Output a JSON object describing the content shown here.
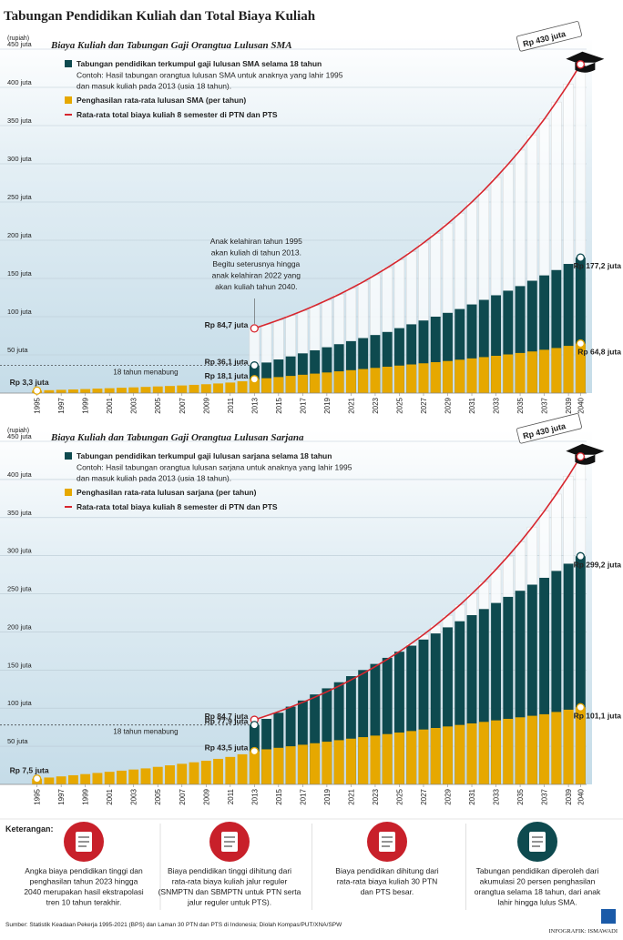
{
  "title": "Tabungan Pendidikan Kuliah dan Total Biaya Kuliah",
  "chart_data": [
    {
      "type": "bar",
      "title": "Biaya Kuliah dan Tabungan Gaji Orangtua Lulusan SMA",
      "y_unit": "(rupiah)",
      "x": [
        1995,
        1996,
        1997,
        1998,
        1999,
        2000,
        2001,
        2002,
        2003,
        2004,
        2005,
        2006,
        2007,
        2008,
        2009,
        2010,
        2011,
        2012,
        2013,
        2014,
        2015,
        2016,
        2017,
        2018,
        2019,
        2020,
        2021,
        2022,
        2023,
        2024,
        2025,
        2026,
        2027,
        2028,
        2029,
        2030,
        2031,
        2032,
        2033,
        2034,
        2035,
        2036,
        2037,
        2038,
        2039,
        2040
      ],
      "xlim": [
        1994.5,
        2040.5
      ],
      "xticks": [
        1995,
        1997,
        1999,
        2001,
        2003,
        2005,
        2007,
        2009,
        2011,
        2013,
        2015,
        2017,
        2019,
        2021,
        2023,
        2025,
        2027,
        2029,
        2031,
        2033,
        2035,
        2037,
        2039,
        2040
      ],
      "highlight_x": 2013,
      "ylim": [
        0,
        450
      ],
      "yticks": [
        {
          "value": 50,
          "label": "50 juta"
        },
        {
          "value": 100,
          "label": "100 juta"
        },
        {
          "value": 150,
          "label": "150 juta"
        },
        {
          "value": 200,
          "label": "200 juta"
        },
        {
          "value": 250,
          "label": "250 juta"
        },
        {
          "value": 300,
          "label": "300 juta"
        },
        {
          "value": 350,
          "label": "350 juta"
        },
        {
          "value": 400,
          "label": "400 juta"
        },
        {
          "value": 450,
          "label": "450 juta"
        }
      ],
      "grid": true,
      "series": [
        {
          "name": "Rata-rata total biaya kuliah 8 semester di PTN dan PTS",
          "type": "line",
          "color": "#d7262e",
          "values": [
            null,
            null,
            null,
            null,
            null,
            null,
            null,
            null,
            null,
            null,
            null,
            null,
            null,
            null,
            null,
            null,
            null,
            null,
            84.7,
            90,
            95.5,
            101.4,
            107.7,
            114.4,
            121.5,
            129,
            137,
            145.5,
            154.5,
            164,
            174.2,
            185,
            196.5,
            208.7,
            221.6,
            235.3,
            249.9,
            265.4,
            281.9,
            299.4,
            317.9,
            337.6,
            358.5,
            380.8,
            404.4,
            430
          ]
        },
        {
          "name": "Tabungan pendidikan terkumpul gaji lulusan SMA selama 18 tahun",
          "note": [
            "Contoh: Hasil tabungan orangtua lulusan SMA untuk anaknya yang lahir 1995",
            "dan masuk kuliah pada 2013 (usia 18 tahun)."
          ],
          "type": "bar",
          "color": "#0e4a4f",
          "values": [
            null,
            null,
            null,
            null,
            null,
            null,
            null,
            null,
            null,
            null,
            null,
            null,
            null,
            null,
            null,
            null,
            null,
            null,
            36.1,
            40,
            44,
            48,
            52,
            56,
            60,
            64,
            68,
            72,
            76,
            80,
            85,
            90,
            95,
            100,
            105,
            110,
            116,
            122,
            128,
            134,
            140,
            147,
            154,
            161,
            169,
            177.2
          ]
        },
        {
          "name": "Penghasilan rata-rata lulusan SMA (per tahun)",
          "type": "bar",
          "color": "#e6a800",
          "values": [
            3.3,
            3.8,
            4.3,
            4.8,
            5.3,
            5.9,
            6.4,
            7.0,
            7.5,
            8.1,
            8.7,
            9.3,
            10.0,
            10.8,
            11.6,
            12.6,
            13.8,
            15.5,
            18.1,
            19.5,
            21,
            22.5,
            24,
            25.5,
            27,
            28.5,
            30,
            31.5,
            33,
            34.5,
            36,
            37.5,
            39,
            40.5,
            42,
            43.7,
            45.4,
            47.1,
            48.8,
            50.6,
            52.5,
            54.5,
            56.7,
            59,
            61.8,
            64.8
          ]
        }
      ],
      "annotations": [
        {
          "text": "Rp 3,3 juta",
          "x": 1995,
          "y": 3.3
        },
        {
          "text": "Rp 84,7 juta",
          "x": 2013,
          "y": 84.7
        },
        {
          "text": "Rp 36,1 juta",
          "x": 2013,
          "y": 36.1
        },
        {
          "text": "Rp 18,1 juta",
          "x": 2013,
          "y": 18.1
        },
        {
          "text": "Rp 177,2 juta",
          "x": 2040,
          "y": 177.2
        },
        {
          "text": "Rp 64,8 juta",
          "x": 2040,
          "y": 64.8
        }
      ],
      "peak_label": {
        "text": "Rp 430 juta",
        "x": 2040,
        "y": 430
      },
      "span": {
        "text": "18 tahun menabung",
        "from": 1995,
        "to": 2013
      },
      "callout": [
        "Anak kelahiran tahun 1995",
        "akan kuliah di tahun 2013.",
        "Begitu seterusnya hingga",
        "anak kelahiran 2022 yang",
        "akan kuliah tahun 2040."
      ]
    },
    {
      "type": "bar",
      "title": "Biaya Kuliah dan Tabungan Gaji Orangtua Lulusan Sarjana",
      "y_unit": "(rupiah)",
      "x": [
        1995,
        1996,
        1997,
        1998,
        1999,
        2000,
        2001,
        2002,
        2003,
        2004,
        2005,
        2006,
        2007,
        2008,
        2009,
        2010,
        2011,
        2012,
        2013,
        2014,
        2015,
        2016,
        2017,
        2018,
        2019,
        2020,
        2021,
        2022,
        2023,
        2024,
        2025,
        2026,
        2027,
        2028,
        2029,
        2030,
        2031,
        2032,
        2033,
        2034,
        2035,
        2036,
        2037,
        2038,
        2039,
        2040
      ],
      "xlim": [
        1994.5,
        2040.5
      ],
      "xticks": [
        1995,
        1997,
        1999,
        2001,
        2003,
        2005,
        2007,
        2009,
        2011,
        2013,
        2015,
        2017,
        2019,
        2021,
        2023,
        2025,
        2027,
        2029,
        2031,
        2033,
        2035,
        2037,
        2039,
        2040
      ],
      "highlight_x": 2013,
      "ylim": [
        0,
        450
      ],
      "yticks": [
        {
          "value": 50,
          "label": "50 juta"
        },
        {
          "value": 100,
          "label": "100 juta"
        },
        {
          "value": 150,
          "label": "150 juta"
        },
        {
          "value": 200,
          "label": "200 juta"
        },
        {
          "value": 250,
          "label": "250 juta"
        },
        {
          "value": 300,
          "label": "300 juta"
        },
        {
          "value": 350,
          "label": "350 juta"
        },
        {
          "value": 400,
          "label": "400 juta"
        },
        {
          "value": 450,
          "label": "450 juta"
        }
      ],
      "grid": true,
      "series": [
        {
          "name": "Rata-rata total biaya kuliah 8 semester di PTN dan PTS",
          "type": "line",
          "color": "#d7262e",
          "values": [
            null,
            null,
            null,
            null,
            null,
            null,
            null,
            null,
            null,
            null,
            null,
            null,
            null,
            null,
            null,
            null,
            null,
            null,
            84.7,
            90,
            95.5,
            101.4,
            107.7,
            114.4,
            121.5,
            129,
            137,
            145.5,
            154.5,
            164,
            174.2,
            185,
            196.5,
            208.7,
            221.6,
            235.3,
            249.9,
            265.4,
            281.9,
            299.4,
            317.9,
            337.6,
            358.5,
            380.8,
            404.4,
            430
          ]
        },
        {
          "name": "Tabungan pendidikan terkumpul gaji lulusan sarjana selama 18 tahun",
          "note": [
            "Contoh: Hasil tabungan orangtua lulusan sarjana untuk anaknya yang lahir 1995",
            "dan masuk kuliah pada 2013 (usia 18 tahun)."
          ],
          "type": "bar",
          "color": "#0e4a4f",
          "values": [
            null,
            null,
            null,
            null,
            null,
            null,
            null,
            null,
            null,
            null,
            null,
            null,
            null,
            null,
            null,
            null,
            null,
            null,
            77.9,
            86,
            94,
            102,
            110,
            118,
            126,
            134,
            142,
            150,
            158,
            166,
            174,
            182,
            190,
            198,
            206,
            214,
            222,
            230,
            238,
            246,
            254,
            262,
            271,
            280,
            289.5,
            299.2
          ]
        },
        {
          "name": "Penghasilan rata-rata lulusan sarjana (per tahun)",
          "type": "bar",
          "color": "#e6a800",
          "values": [
            7.5,
            9,
            10.5,
            12,
            13.5,
            15,
            16.5,
            18,
            19.5,
            21,
            23,
            25,
            27,
            29,
            31,
            33.5,
            36,
            39.5,
            43.5,
            46,
            48,
            50,
            52,
            54,
            56,
            58,
            60,
            62,
            64,
            66,
            68,
            70,
            72,
            74,
            76,
            78,
            80,
            82,
            84,
            86,
            88,
            90,
            92,
            95,
            98,
            101.1
          ]
        }
      ],
      "annotations": [
        {
          "text": "Rp 7,5 juta",
          "x": 1995,
          "y": 7.5
        },
        {
          "text": "Rp 84,7 juta",
          "x": 2013,
          "y": 84.7
        },
        {
          "text": "Rp 77,9 juta",
          "x": 2013,
          "y": 77.9
        },
        {
          "text": "Rp 43,5 juta",
          "x": 2013,
          "y": 43.5
        },
        {
          "text": "Rp 299,2 juta",
          "x": 2040,
          "y": 299.2
        },
        {
          "text": "Rp 101,1 juta",
          "x": 2040,
          "y": 101.1
        }
      ],
      "peak_label": {
        "text": "Rp 430 juta",
        "x": 2040,
        "y": 430
      },
      "span": {
        "text": "18 tahun menabung",
        "from": 1995,
        "to": 2013
      }
    }
  ],
  "notes": {
    "title": "Keterangan:",
    "items": [
      {
        "text": [
          "Angka biaya pendidikan tinggi dan",
          "penghasilan tahun 2023 hingga",
          "2040 merupakan hasil ekstrapolasi",
          "tren 10 tahun terakhir."
        ]
      },
      {
        "text": [
          "Biaya pendidikan tinggi dihitung dari",
          "rata-rata biaya kuliah jalur reguler",
          "(SNMPTN dan SBMPTN untuk PTN serta",
          "jalur reguler untuk PTS)."
        ]
      },
      {
        "text": [
          "Biaya pendidikan dihitung dari",
          "rata-rata biaya kuliah 30 PTN",
          "dan PTS besar."
        ]
      },
      {
        "text": [
          "Tabungan pendidikan diperoleh dari",
          "akumulasi 20 persen penghasilan",
          "orangtua selama 18 tahun, dari anak",
          "lahir hingga lulus SMA."
        ]
      }
    ]
  },
  "source": "Sumber: Statistik Keadaan Pekerja 1995-2021 (BPS) dan Laman 30 PTN dan PTS di Indonesia; Diolah Kompas/PUT/XNA/SPW",
  "credit": "INFOGRAFIK: ISMAWADI"
}
